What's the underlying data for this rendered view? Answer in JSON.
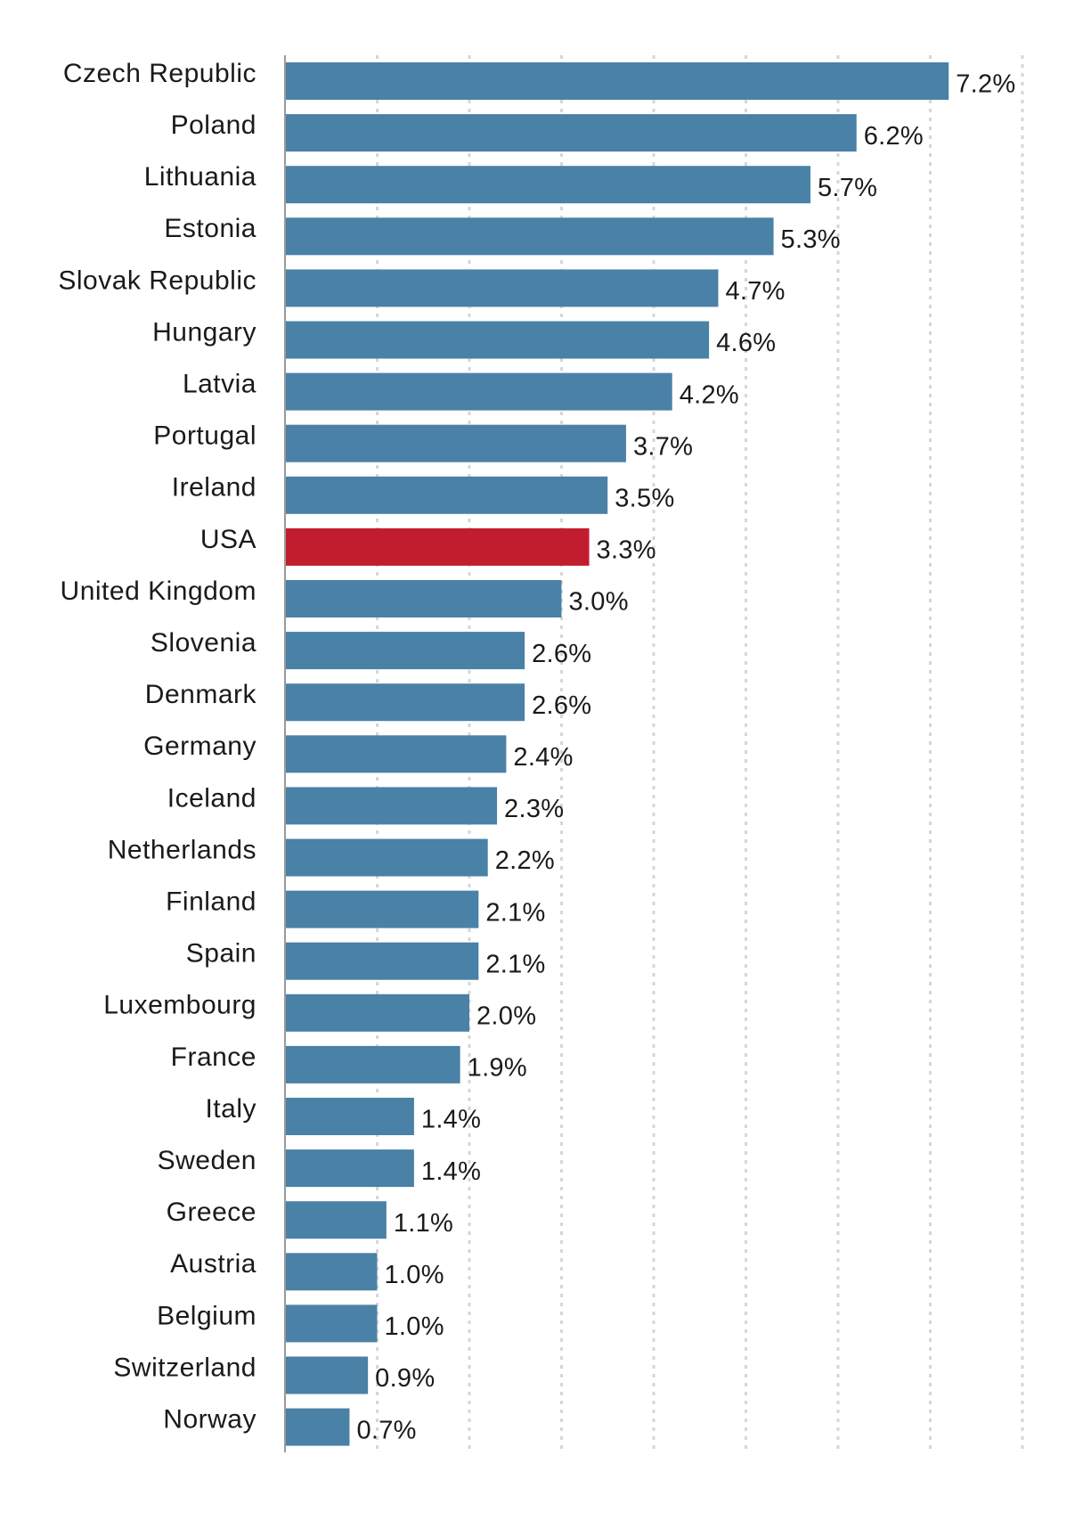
{
  "chart_data": {
    "type": "bar",
    "orientation": "horizontal",
    "categories": [
      "Czech Republic",
      "Poland",
      "Lithuania",
      "Estonia",
      "Slovak Republic",
      "Hungary",
      "Latvia",
      "Portugal",
      "Ireland",
      "USA",
      "United Kingdom",
      "Slovenia",
      "Denmark",
      "Germany",
      "Iceland",
      "Netherlands",
      "Finland",
      "Spain",
      "Luxembourg",
      "France",
      "Italy",
      "Sweden",
      "Greece",
      "Austria",
      "Belgium",
      "Switzerland",
      "Norway"
    ],
    "values": [
      7.2,
      6.2,
      5.7,
      5.3,
      4.7,
      4.6,
      4.2,
      3.7,
      3.5,
      3.3,
      3.0,
      2.6,
      2.6,
      2.4,
      2.3,
      2.2,
      2.1,
      2.1,
      2.0,
      1.9,
      1.4,
      1.4,
      1.1,
      1.0,
      1.0,
      0.9,
      0.7
    ],
    "value_labels": [
      "7.2%",
      "6.2%",
      "5.7%",
      "5.3%",
      "4.7%",
      "4.6%",
      "4.2%",
      "3.7%",
      "3.5%",
      "3.3%",
      "3.0%",
      "2.6%",
      "2.6%",
      "2.4%",
      "2.3%",
      "2.2%",
      "2.1%",
      "2.1%",
      "2.0%",
      "1.9%",
      "1.4%",
      "1.4%",
      "1.1%",
      "1.0%",
      "1.0%",
      "0.9%",
      "0.7%"
    ],
    "highlight_category": "USA",
    "xlim": [
      0,
      8
    ],
    "grid_step": 1,
    "grid": true,
    "title": "",
    "xlabel": "",
    "ylabel": "",
    "colors": {
      "bar": "#4a81a6",
      "highlight": "#c11d2f",
      "grid": "#d6d6d6",
      "axis": "#9a9a9a",
      "text": "#1a1a1a"
    }
  }
}
